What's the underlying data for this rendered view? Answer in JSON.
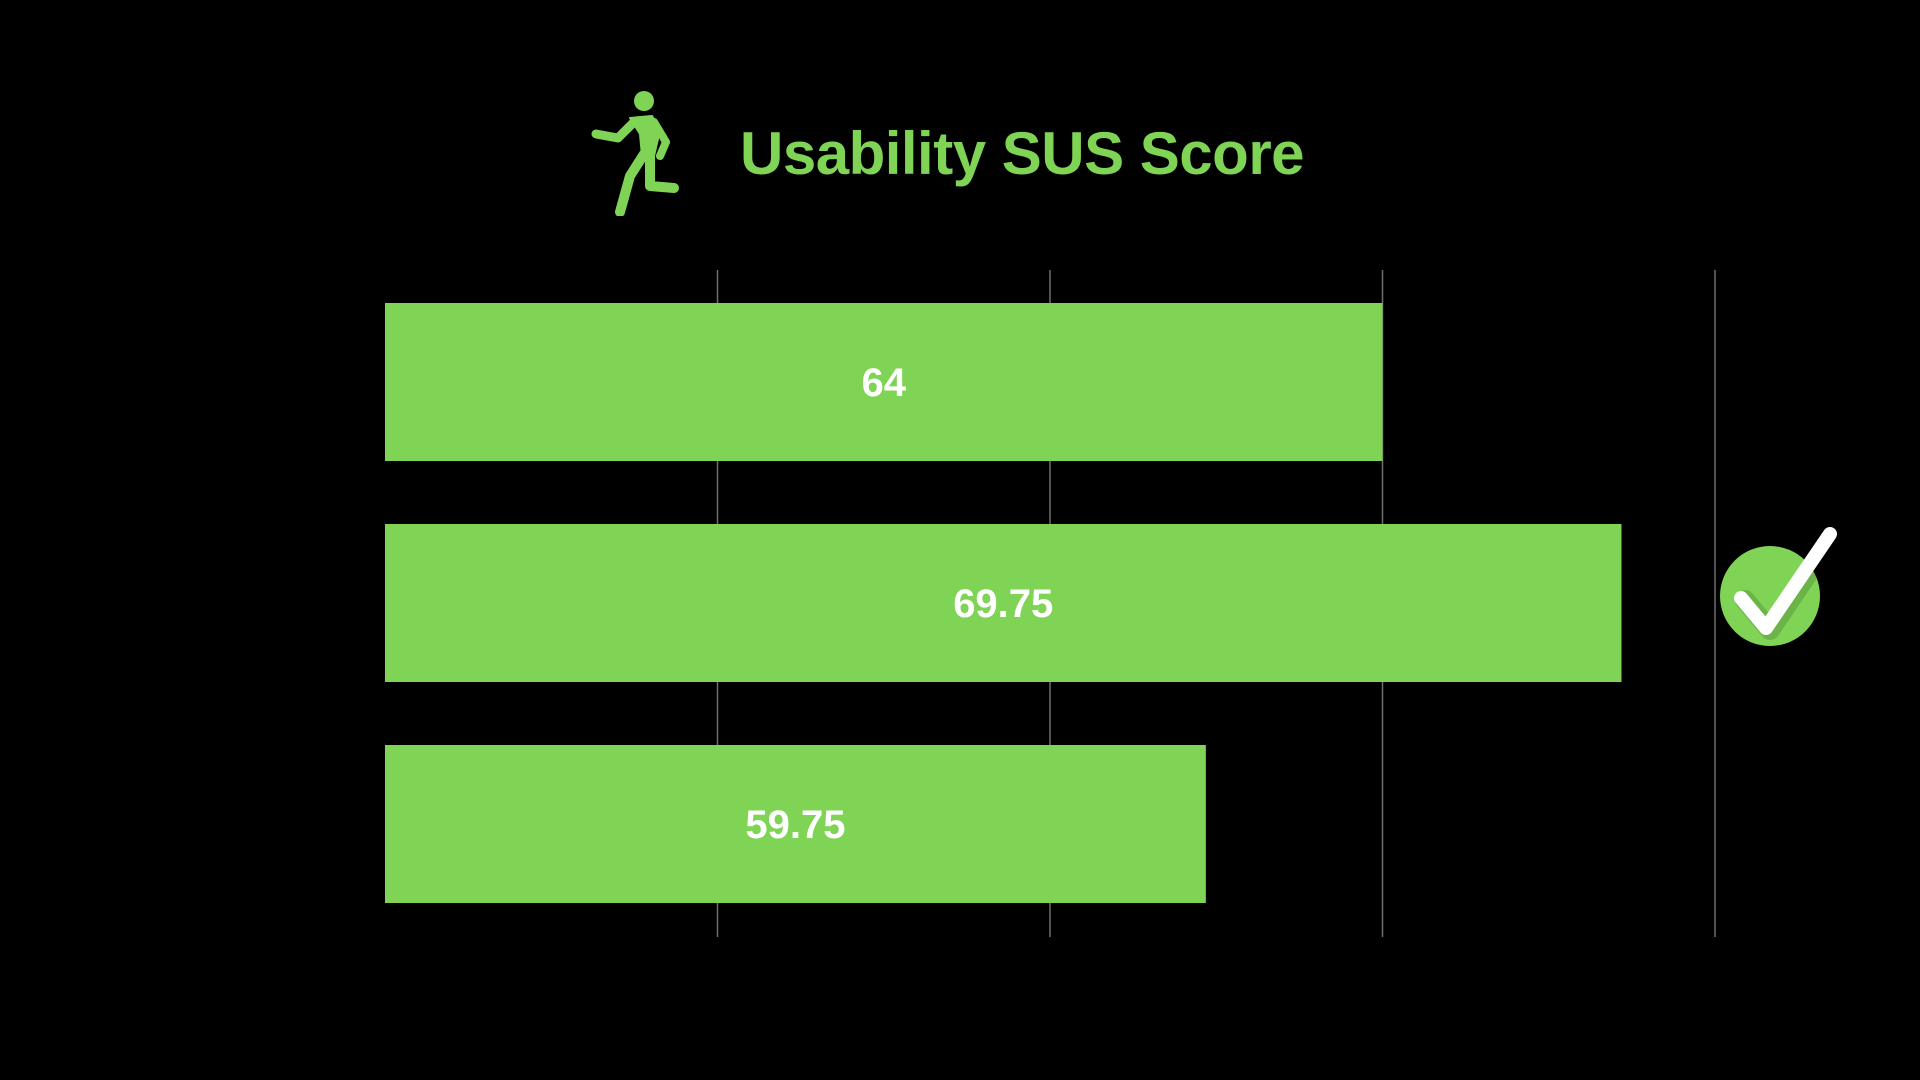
{
  "colors": {
    "background": "#000000",
    "accent": "#7fd455",
    "gridline": "#6e6e6e",
    "label": "#ffffff"
  },
  "header": {
    "title": "Usability SUS Score",
    "icon": "running-person-icon"
  },
  "chart_data": {
    "type": "bar",
    "orientation": "horizontal",
    "title": "Usability SUS Score",
    "xlabel": "",
    "ylabel": "",
    "categories": [
      "",
      "",
      ""
    ],
    "values": [
      64,
      69.75,
      59.75
    ],
    "data_labels": [
      "64",
      "69.75",
      "59.75"
    ],
    "xlim": [
      40,
      72
    ],
    "grid": true,
    "legend": "none",
    "highlight": {
      "index": 1,
      "icon": "check-circle-icon"
    }
  }
}
